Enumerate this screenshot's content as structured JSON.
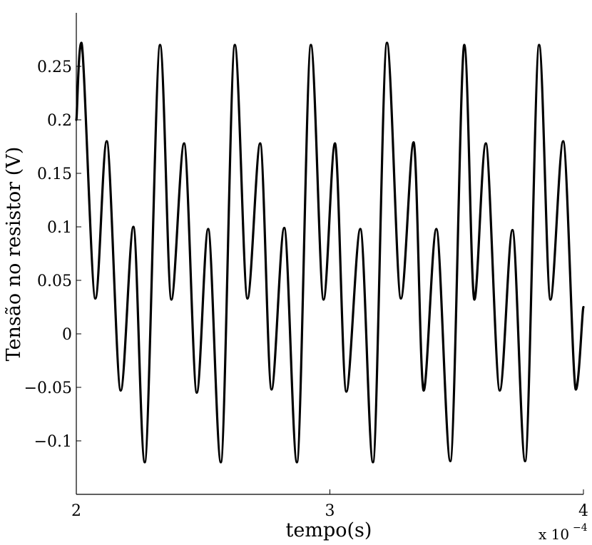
{
  "chart_data": {
    "type": "line",
    "xlabel": "tempo(s)",
    "ylabel": "Tensão no resistor (V)",
    "x_multiplier_label": {
      "base": "x 10",
      "exponent": "−4"
    },
    "xlim": [
      2.0,
      4.0
    ],
    "ylim": [
      -0.15,
      0.3
    ],
    "x_ticks": [
      2,
      3,
      4
    ],
    "x_tick_labels": [
      "2",
      "3",
      "4"
    ],
    "y_ticks": [
      -0.1,
      -0.05,
      0,
      0.05,
      0.1,
      0.15,
      0.2,
      0.25
    ],
    "y_tick_labels": [
      "−0.1",
      "−0.05",
      "0",
      "0.05",
      "0.1",
      "0.15",
      "0.2",
      "0.25"
    ],
    "grid": false,
    "line_color": "#000000",
    "series": [
      {
        "x": [
          2.0,
          2.02,
          2.075,
          2.12,
          2.175,
          2.225,
          2.27,
          2.33,
          2.375,
          2.425,
          2.475,
          2.52,
          2.57,
          2.625,
          2.675,
          2.725,
          2.77,
          2.82,
          2.87,
          2.925,
          2.975,
          3.02,
          3.065,
          3.12,
          3.17,
          3.225,
          3.28,
          3.33,
          3.37,
          3.42,
          3.475,
          3.53,
          3.57,
          3.615,
          3.67,
          3.72,
          3.77,
          3.825,
          3.87,
          3.92,
          3.97,
          4.0
        ],
        "y": [
          0.2,
          0.272,
          0.033,
          0.18,
          -0.053,
          0.1,
          -0.12,
          0.27,
          0.032,
          0.178,
          -0.055,
          0.098,
          -0.12,
          0.27,
          0.033,
          0.178,
          -0.052,
          0.099,
          -0.12,
          0.27,
          0.032,
          0.178,
          -0.054,
          0.098,
          -0.12,
          0.272,
          0.033,
          0.179,
          -0.053,
          0.098,
          -0.119,
          0.27,
          0.032,
          0.178,
          -0.053,
          0.097,
          -0.119,
          0.27,
          0.032,
          0.18,
          -0.052,
          0.025
        ]
      }
    ]
  }
}
